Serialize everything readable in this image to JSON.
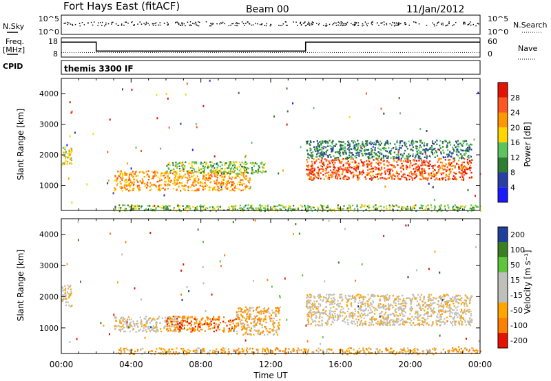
{
  "header": {
    "title": "Fort Hays East (fitACF)",
    "beam": "Beam 00",
    "date": "11/Jan/2012"
  },
  "labels": {
    "nsky": "N.Sky",
    "nsearch": "N.Search",
    "freq_line1": "Freq.",
    "freq_line2": "[MHz]",
    "nave": "Nave",
    "cpid": "CPID",
    "cpid_value": "themis 3300 IF",
    "slant_range": "Slant Range [km]",
    "power_label": "Power [dB]",
    "velocity_label": "Velocity [m s⁻¹]",
    "xlabel": "Time UT"
  },
  "colors": {
    "power": [
      "#1a1aff",
      "#2a3fa5",
      "#2e7d32",
      "#5cc45c",
      "#ffd600",
      "#ff9800",
      "#ff5722",
      "#e51400"
    ],
    "velocity": [
      "#e51400",
      "#ff7f00",
      "#ffa500",
      "#bfbfbb",
      "#bfbfbb",
      "#5fc53a",
      "#3b7f22",
      "#1f3f9a"
    ]
  },
  "chart_data": [
    {
      "type": "scatter",
      "panel": "noise",
      "left_axis": {
        "name": "N.Sky",
        "ticks": [
          "10^5",
          "10^0"
        ]
      },
      "right_axis": {
        "name": "N.Search",
        "ticks": [
          "10^5",
          "10^0"
        ]
      }
    },
    {
      "type": "line",
      "panel": "frequency",
      "left_axis": {
        "name": "Freq. [MHz]",
        "ylim": [
          8,
          18
        ],
        "ticks": [
          "18",
          "8"
        ]
      },
      "right_axis": {
        "name": "Nave",
        "ylim": [
          0,
          60
        ],
        "ticks": [
          "60",
          "0"
        ]
      },
      "series": [
        {
          "name": "Freq.",
          "x": [
            0,
            2,
            2,
            14,
            14,
            24
          ],
          "y": [
            16,
            16,
            11,
            11,
            16,
            16
          ]
        },
        {
          "name": "Nave",
          "x": [
            0,
            24
          ],
          "y": [
            13,
            13
          ]
        }
      ]
    },
    {
      "type": "heatmap",
      "panel": "power",
      "ylabel": "Slant Range [km]",
      "ylim": [
        180,
        4500
      ],
      "yticks": [
        "1000",
        "2000",
        "3000",
        "4000"
      ],
      "colorbar": {
        "label": "Power [dB]",
        "ticks": [
          "4",
          "8",
          "12",
          "16",
          "20",
          "24",
          "28"
        ]
      },
      "regions": [
        {
          "t0": 0.0,
          "t1": 0.6,
          "r0": 1700,
          "r1": 2300,
          "bin": 4
        },
        {
          "t0": 3.0,
          "t1": 10.8,
          "r0": 850,
          "r1": 1500,
          "bin": 5
        },
        {
          "t0": 6.0,
          "t1": 11.7,
          "r0": 1400,
          "r1": 1800,
          "bin": 3
        },
        {
          "t0": 14.0,
          "t1": 23.5,
          "r0": 1200,
          "r1": 1900,
          "bin": 6
        },
        {
          "t0": 14.0,
          "t1": 23.5,
          "r0": 1900,
          "r1": 2500,
          "bin": 2
        },
        {
          "t0": 3.0,
          "t1": 24.0,
          "r0": 180,
          "r1": 380,
          "bin": 3
        }
      ]
    },
    {
      "type": "heatmap",
      "panel": "velocity",
      "ylabel": "Slant Range [km]",
      "ylim": [
        180,
        4500
      ],
      "yticks": [
        "1000",
        "2000",
        "3000",
        "4000"
      ],
      "colorbar": {
        "label": "Velocity [m s⁻¹]",
        "ticks": [
          "-200",
          "-100",
          "-50",
          "-15",
          "15",
          "50",
          "100",
          "200"
        ]
      },
      "regions": [
        {
          "t0": 0.0,
          "t1": 0.6,
          "r0": 1700,
          "r1": 2400,
          "bin": 3
        },
        {
          "t0": 3.0,
          "t1": 7.0,
          "r0": 900,
          "r1": 1400,
          "bin": 3
        },
        {
          "t0": 6.0,
          "t1": 10.0,
          "r0": 900,
          "r1": 1400,
          "bin": 1
        },
        {
          "t0": 10.0,
          "t1": 12.5,
          "r0": 800,
          "r1": 1700,
          "bin": 2
        },
        {
          "t0": 14.0,
          "t1": 23.5,
          "r0": 1100,
          "r1": 2100,
          "bin": 3
        },
        {
          "t0": 3.0,
          "t1": 24.0,
          "r0": 180,
          "r1": 380,
          "bin": 2
        }
      ]
    }
  ],
  "x_axis": {
    "label": "Time UT",
    "xlim": [
      0,
      24
    ],
    "ticks": [
      "00:00",
      "04:00",
      "08:00",
      "12:00",
      "16:00",
      "20:00",
      "00:00"
    ]
  }
}
